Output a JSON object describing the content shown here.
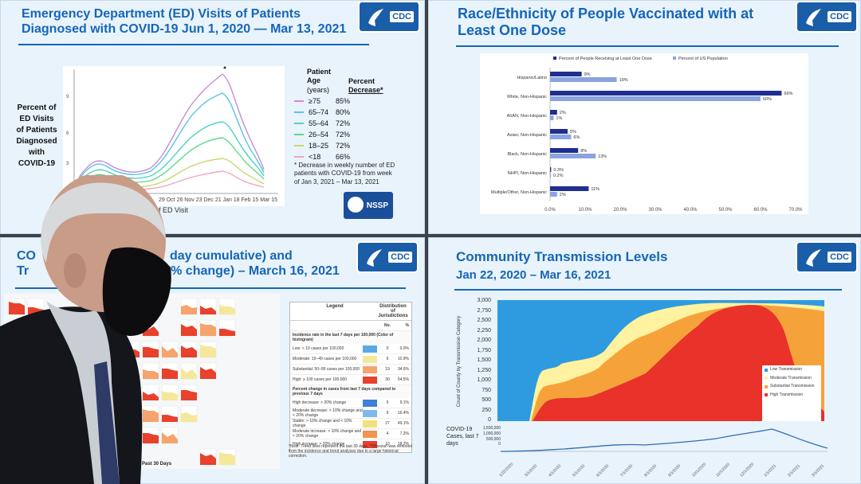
{
  "panels": {
    "ed_visits": {
      "title_line1": "Emergency Department (ED) Visits of Patients",
      "title_line2": "Diagnosed with COVID-19 Jun 1, 2020 — Mar 13, 2021",
      "logo": "CDC",
      "y_axis_label_lines": [
        "Percent of",
        "ED Visits",
        "of Patients",
        "Diagnosed",
        "with",
        "COVID-19"
      ],
      "x_axis_label": "k of ED Visit",
      "x_ticks_visible": "29 Oct 26 Nov 23 Dec 21 Jan 18 Feb 15 Mar 15",
      "legend_header": {
        "col1_line1": "Patient",
        "col1_line2": "Age",
        "col1_line3": "(years)",
        "col2_line1": "Percent",
        "col2_line2": "Decrease*"
      },
      "legend": [
        {
          "age": "≥75",
          "pct": "85%",
          "color": "#c98bd8"
        },
        {
          "age": "65–74",
          "pct": "80%",
          "color": "#56c4e6"
        },
        {
          "age": "55–64",
          "pct": "72%",
          "color": "#4ad3c1"
        },
        {
          "age": "26–54",
          "pct": "72%",
          "color": "#5fd88b"
        },
        {
          "age": "18–25",
          "pct": "72%",
          "color": "#c7d86a"
        },
        {
          "age": "<18",
          "pct": "66%",
          "color": "#f0a7c3"
        }
      ],
      "note": "* Decrease in weekly number of ED patients with COVID-19 from week of Jan 3, 2021 – Mar 13, 2021",
      "nssp_label": "NSSP"
    },
    "vaccinated": {
      "title_line1": "Race/Ethnicity of People Vaccinated with at",
      "title_line2": "Least One Dose",
      "logo": "CDC"
    },
    "cases": {
      "title_line1_a": "CO",
      "title_line1_b": "day cumulative) and",
      "title_line2_a": "Tr",
      "title_line2_b": "% change) – March 16, 2021",
      "logo": "CDC",
      "legend_title": "Legend",
      "legend_col_header": "Distribution of Jurisdictions",
      "legend_no": "No.",
      "legend_pct": "%",
      "incidence_header": "Incidence rate in the last 7 days per 100,000 (Color of histogram)",
      "incidence_rows": [
        {
          "label": "Low: < 10 cases per 100,000",
          "color": "#5aa9e6",
          "no": "0",
          "pct": "0.0%"
        },
        {
          "label": "Moderate: 10–49 cases per 100,000",
          "color": "#f6e89a",
          "no": "6",
          "pct": "10.9%"
        },
        {
          "label": "Substantial: 50–99 cases per 100,000",
          "color": "#f5a46c",
          "no": "19",
          "pct": "34.6%"
        },
        {
          "label": "High: ≥ 100 cases per 100,000",
          "color": "#e8412c",
          "no": "30",
          "pct": "54.5%"
        }
      ],
      "change_header": "Percent change in cases from last 7 days compared to previous 7 days",
      "change_rows": [
        {
          "label": "High decrease: > 20% change",
          "color": "#3f7fd6",
          "no": "5",
          "pct": "9.1%"
        },
        {
          "label": "Moderate decrease: > 10% change and < 20% change",
          "color": "#7fb8ea",
          "no": "9",
          "pct": "16.4%"
        },
        {
          "label": "Stable: > 10% change and < 10% change",
          "color": "#f3e07a",
          "no": "27",
          "pct": "49.1%"
        },
        {
          "label": "Moderate increase: > 10% change and < 20% change",
          "color": "#f0944f",
          "no": "4",
          "pct": "7.3%"
        },
        {
          "label": "High increase: > 20% change",
          "color": "#e8412c",
          "no": "10",
          "pct": "18.2%"
        }
      ],
      "footnote": "*Note: Trend lines represent the last 30 days. **Missouri was removed from the incidence and trend analyses due to a large historical correction.",
      "past_label": "Past 30 Days"
    },
    "transmission": {
      "title_line1": "Community Transmission Levels",
      "title_line2": "Jan 22, 2020 – Mar 16, 2021",
      "logo": "CDC",
      "y_axis_label": "Count of County by Transmission Category",
      "y_ticks": [
        "3,000",
        "2,750",
        "2,500",
        "2,250",
        "2,000",
        "1,750",
        "1,500",
        "1,250",
        "1,000",
        "750",
        "500",
        "250",
        "0"
      ],
      "legend": [
        {
          "label": "Low Transmission",
          "color": "#2e9be0"
        },
        {
          "label": "Moderate Transmission",
          "color": "#fff2a0"
        },
        {
          "label": "Substantial Transmission",
          "color": "#f6a23a"
        },
        {
          "label": "High Transmission",
          "color": "#e8322a"
        }
      ],
      "cases_label": "COVID-19 Cases, last 7 days",
      "cases_ticks": [
        "1,500,000",
        "1,000,000",
        "500,000",
        "0"
      ]
    }
  },
  "chart_data": [
    {
      "type": "bar",
      "title": "Race/Ethnicity of People Vaccinated with at Least One Dose",
      "categories": [
        "Hispanic/Latino",
        "White, Non-Hispanic",
        "AI/AN, Non-Hispanic",
        "Asian, Non-Hispanic",
        "Black, Non-Hispanic",
        "NHPI, Non-Hispanic",
        "Multiple/Other, Non-Hispanic"
      ],
      "series": [
        {
          "name": "Percent of People Receiving at Least One Dose",
          "color": "#1f2f8f",
          "values": [
            9,
            66,
            2,
            5,
            8,
            0.3,
            11
          ],
          "labels": [
            "9%",
            "66%",
            "2%",
            "5%",
            "8%",
            "0.3%",
            "11%"
          ]
        },
        {
          "name": "Percent of US Population",
          "color": "#8aa4e0",
          "values": [
            19,
            60,
            1,
            6,
            13,
            0.2,
            2
          ],
          "labels": [
            "19%",
            "60%",
            "1%",
            "6%",
            "13%",
            "0.2%",
            "2%"
          ]
        }
      ],
      "x_ticks": [
        "0.0%",
        "10.0%",
        "20.0%",
        "30.0%",
        "40.0%",
        "50.0%",
        "60.0%",
        "70.0%"
      ],
      "xlim": [
        0,
        70
      ],
      "orientation": "horizontal",
      "legend_position": "top"
    }
  ]
}
